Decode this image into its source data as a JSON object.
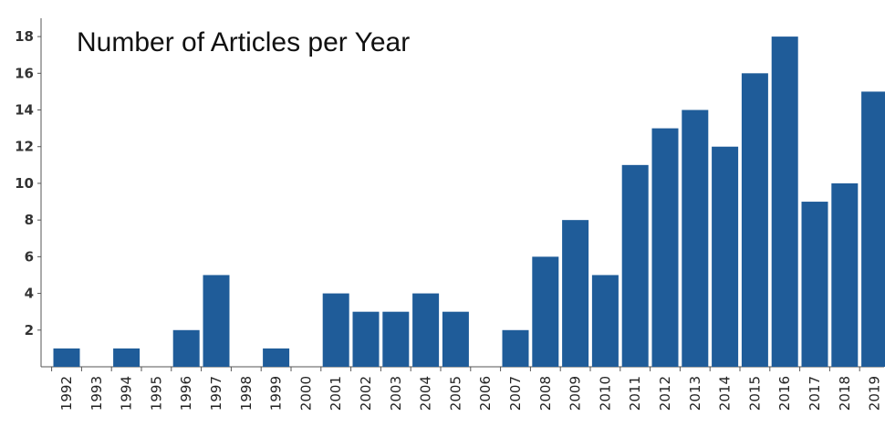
{
  "chart_data": {
    "type": "bar",
    "title": "Number of Articles per Year",
    "xlabel": "",
    "ylabel": "",
    "categories": [
      "1992",
      "1993",
      "1994",
      "1995",
      "1996",
      "1997",
      "1998",
      "1999",
      "2000",
      "2001",
      "2002",
      "2003",
      "2004",
      "2005",
      "2006",
      "2007",
      "2008",
      "2009",
      "2010",
      "2011",
      "2012",
      "2013",
      "2014",
      "2015",
      "2016",
      "2017",
      "2018",
      "2019"
    ],
    "values": [
      1,
      0,
      1,
      0,
      2,
      5,
      0,
      1,
      0,
      4,
      3,
      3,
      4,
      3,
      0,
      2,
      6,
      8,
      5,
      11,
      13,
      14,
      12,
      16,
      18,
      9,
      10,
      15
    ],
    "ylim": [
      0,
      19
    ],
    "yticks": [
      2,
      4,
      6,
      8,
      10,
      12,
      14,
      16,
      18
    ],
    "grid": false,
    "legend": "none",
    "bar_color": "#1f5c99"
  }
}
